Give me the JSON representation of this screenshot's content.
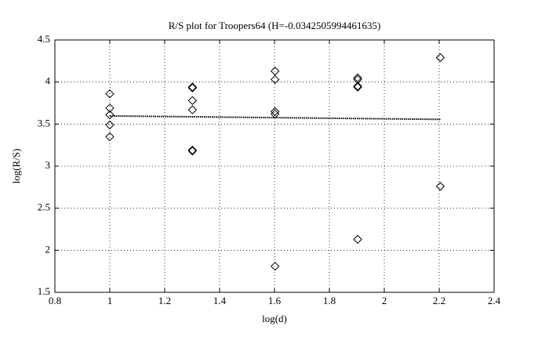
{
  "chart_data": {
    "type": "scatter",
    "title": "R/S plot for Troopers64 (H=-0.0342505994461635)",
    "x_label": "log(d)",
    "y_label": "log(R/S)",
    "x": [
      1,
      1,
      1,
      1,
      1,
      1.301,
      1.301,
      1.301,
      1.301,
      1.301,
      1.301,
      1.602,
      1.602,
      1.602,
      1.602,
      1.602,
      1.903,
      1.903,
      1.903,
      1.903,
      1.903,
      2.204,
      2.204
    ],
    "values": [
      3.86,
      3.69,
      3.61,
      3.49,
      3.35,
      3.94,
      3.93,
      3.78,
      3.67,
      3.19,
      3.18,
      4.13,
      4.03,
      3.65,
      3.62,
      1.81,
      4.05,
      4.03,
      3.95,
      3.94,
      2.13,
      4.29,
      2.76
    ],
    "marker": "diamond",
    "color": "#000000",
    "fit": {
      "x": [
        1,
        2.204
      ],
      "values": [
        3.597,
        3.556
      ],
      "style": "dotted",
      "color": "#000000"
    },
    "xlim": [
      0.8,
      2.4
    ],
    "xticks": [
      0.8,
      1,
      1.2,
      1.4,
      1.6,
      1.8,
      2,
      2.2,
      2.4
    ],
    "ylim": [
      1.5,
      4.5
    ],
    "yticks": [
      1.5,
      2,
      2.5,
      3,
      3.5,
      4,
      4.5
    ],
    "grid": true
  }
}
